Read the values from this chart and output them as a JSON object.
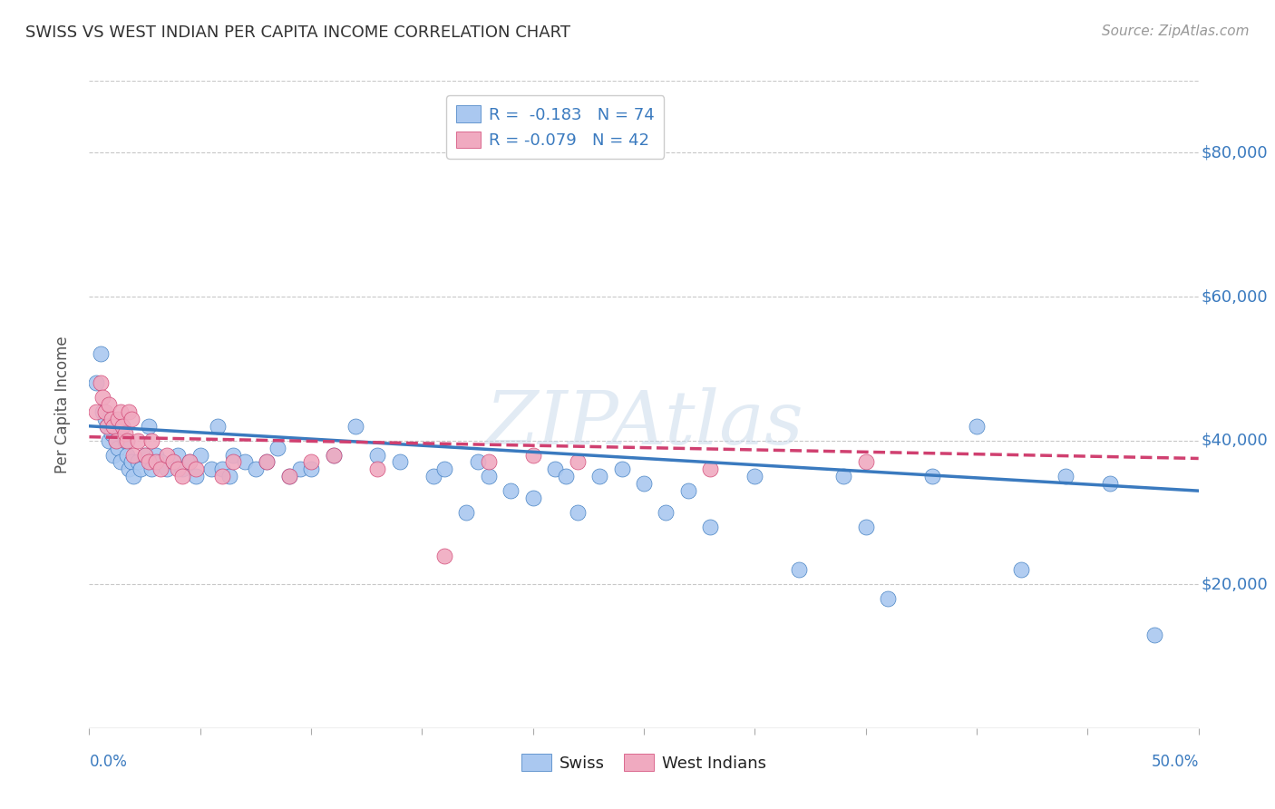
{
  "title": "SWISS VS WEST INDIAN PER CAPITA INCOME CORRELATION CHART",
  "source": "Source: ZipAtlas.com",
  "ylabel": "Per Capita Income",
  "yticks": [
    20000,
    40000,
    60000,
    80000
  ],
  "ytick_labels": [
    "$20,000",
    "$40,000",
    "$60,000",
    "$80,000"
  ],
  "xlim": [
    0.0,
    0.5
  ],
  "ylim": [
    0,
    90000
  ],
  "watermark": "ZIPAtlas",
  "legend_swiss": "R =  -0.183   N = 74",
  "legend_wi": "R = -0.079   N = 42",
  "swiss_color": "#aac8f0",
  "wi_color": "#f0aac0",
  "swiss_line_color": "#3a7abf",
  "wi_line_color": "#d04070",
  "swiss_scatter_x": [
    0.003,
    0.005,
    0.006,
    0.007,
    0.008,
    0.009,
    0.01,
    0.011,
    0.012,
    0.013,
    0.014,
    0.015,
    0.016,
    0.017,
    0.018,
    0.019,
    0.02,
    0.022,
    0.023,
    0.025,
    0.027,
    0.028,
    0.03,
    0.032,
    0.035,
    0.038,
    0.04,
    0.042,
    0.045,
    0.048,
    0.05,
    0.055,
    0.058,
    0.06,
    0.063,
    0.065,
    0.07,
    0.075,
    0.08,
    0.085,
    0.09,
    0.095,
    0.1,
    0.11,
    0.12,
    0.13,
    0.14,
    0.155,
    0.16,
    0.17,
    0.175,
    0.18,
    0.19,
    0.2,
    0.21,
    0.215,
    0.22,
    0.23,
    0.24,
    0.25,
    0.26,
    0.27,
    0.28,
    0.3,
    0.32,
    0.34,
    0.35,
    0.36,
    0.38,
    0.4,
    0.42,
    0.44,
    0.46,
    0.48
  ],
  "swiss_scatter_y": [
    48000,
    52000,
    44000,
    43000,
    42000,
    40000,
    41000,
    38000,
    40000,
    39000,
    37000,
    42000,
    40000,
    38000,
    36000,
    37000,
    35000,
    37000,
    36000,
    38000,
    42000,
    36000,
    38000,
    37000,
    36000,
    37000,
    38000,
    36000,
    37000,
    35000,
    38000,
    36000,
    42000,
    36000,
    35000,
    38000,
    37000,
    36000,
    37000,
    39000,
    35000,
    36000,
    36000,
    38000,
    42000,
    38000,
    37000,
    35000,
    36000,
    30000,
    37000,
    35000,
    33000,
    32000,
    36000,
    35000,
    30000,
    35000,
    36000,
    34000,
    30000,
    33000,
    28000,
    35000,
    22000,
    35000,
    28000,
    18000,
    35000,
    42000,
    22000,
    35000,
    34000,
    13000
  ],
  "wi_scatter_x": [
    0.003,
    0.005,
    0.006,
    0.007,
    0.008,
    0.009,
    0.01,
    0.011,
    0.012,
    0.013,
    0.014,
    0.015,
    0.016,
    0.017,
    0.018,
    0.019,
    0.02,
    0.022,
    0.025,
    0.027,
    0.028,
    0.03,
    0.032,
    0.035,
    0.038,
    0.04,
    0.042,
    0.045,
    0.048,
    0.06,
    0.065,
    0.08,
    0.09,
    0.1,
    0.11,
    0.13,
    0.16,
    0.18,
    0.2,
    0.22,
    0.28,
    0.35
  ],
  "wi_scatter_y": [
    44000,
    48000,
    46000,
    44000,
    42000,
    45000,
    43000,
    42000,
    40000,
    43000,
    44000,
    42000,
    41000,
    40000,
    44000,
    43000,
    38000,
    40000,
    38000,
    37000,
    40000,
    37000,
    36000,
    38000,
    37000,
    36000,
    35000,
    37000,
    36000,
    35000,
    37000,
    37000,
    35000,
    37000,
    38000,
    36000,
    24000,
    37000,
    38000,
    37000,
    36000,
    37000
  ],
  "swiss_trend_x": [
    0.0,
    0.5
  ],
  "swiss_trend_y": [
    42000,
    33000
  ],
  "wi_trend_x": [
    0.0,
    0.5
  ],
  "wi_trend_y": [
    40500,
    37500
  ],
  "xtick_positions": [
    0.0,
    0.05,
    0.1,
    0.15,
    0.2,
    0.25,
    0.3,
    0.35,
    0.4,
    0.45,
    0.5
  ],
  "figsize": [
    14.06,
    8.92
  ],
  "dpi": 100
}
